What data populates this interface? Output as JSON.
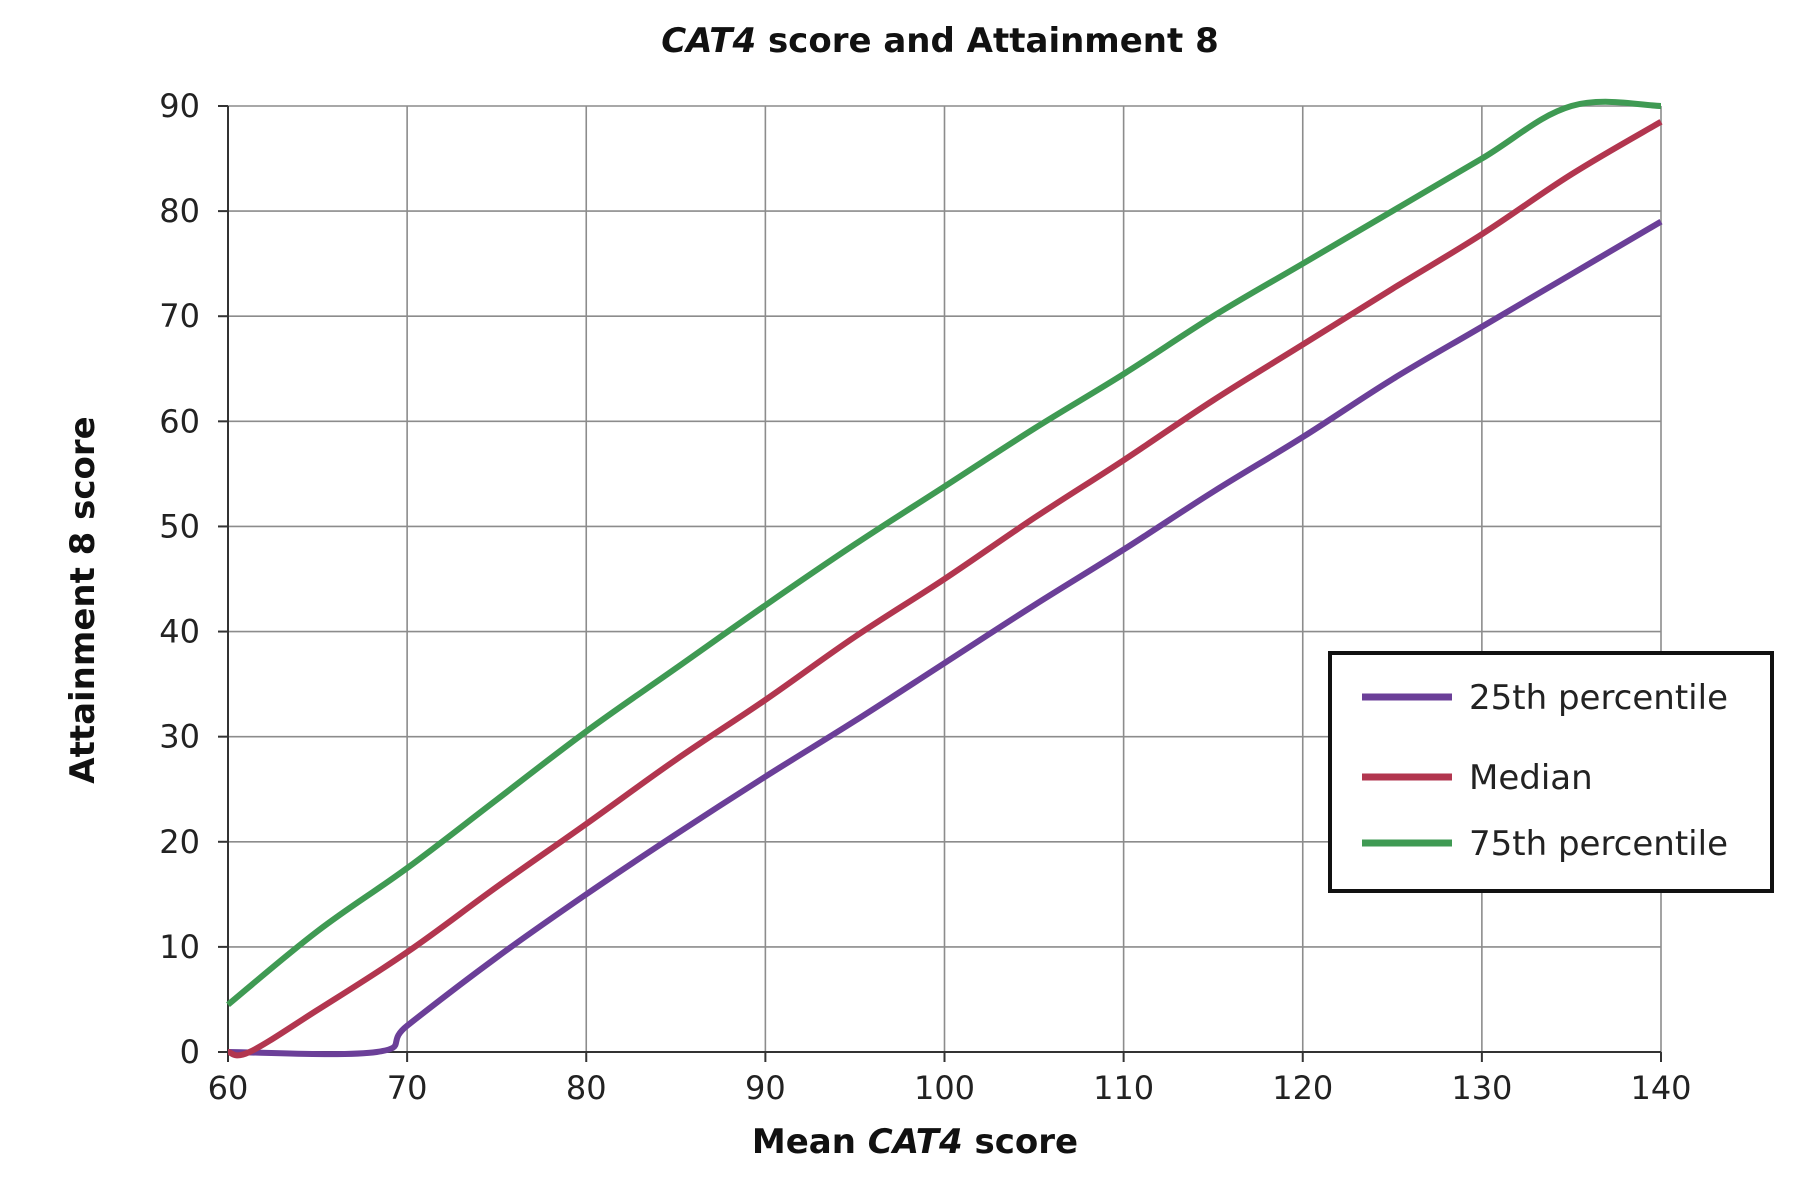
{
  "chart_data": {
    "type": "line",
    "title_em": "CAT4",
    "title_rest": " score and Attainment 8",
    "xlabel_pre": "Mean ",
    "xlabel_em": "CAT4",
    "xlabel_post": " score",
    "ylabel": "Attainment 8 score",
    "xlim": [
      60,
      140
    ],
    "ylim": [
      0,
      90
    ],
    "x_ticks": [
      "60",
      "70",
      "80",
      "90",
      "100",
      "110",
      "120",
      "130",
      "140"
    ],
    "y_ticks": [
      "0",
      "10",
      "20",
      "30",
      "40",
      "50",
      "60",
      "70",
      "80",
      "90"
    ],
    "grid": true,
    "legend_position": "bottom-right",
    "series": [
      {
        "name": "25th percentile",
        "color": "#6b3f98",
        "x": [
          60,
          68.3,
          70,
          75,
          80,
          85,
          90,
          95,
          100,
          105,
          110,
          115,
          120,
          125,
          130,
          135,
          140
        ],
        "y": [
          0,
          0,
          2.5,
          9,
          15,
          20.7,
          26.2,
          31.5,
          37,
          42.5,
          47.8,
          53.3,
          58.5,
          64,
          69,
          74,
          79
        ]
      },
      {
        "name": "Median",
        "color": "#b2364f",
        "x": [
          60,
          61.2,
          65,
          70,
          75,
          80,
          85,
          90,
          95,
          100,
          105,
          110,
          115,
          120,
          125,
          130,
          135,
          140
        ],
        "y": [
          0,
          0,
          4,
          9.5,
          15.7,
          21.7,
          27.8,
          33.5,
          39.5,
          45,
          50.8,
          56.3,
          62,
          67.3,
          72.6,
          77.8,
          83.5,
          88.5
        ]
      },
      {
        "name": "75th percentile",
        "color": "#3f9a53",
        "x": [
          60,
          65,
          70,
          75,
          80,
          85,
          90,
          95,
          100,
          105,
          110,
          115,
          120,
          125,
          130,
          135,
          140
        ],
        "y": [
          4.5,
          11.5,
          17.5,
          24,
          30.5,
          36.5,
          42.5,
          48.3,
          53.8,
          59.3,
          64.5,
          70,
          75,
          80,
          85,
          90,
          90
        ]
      }
    ]
  }
}
